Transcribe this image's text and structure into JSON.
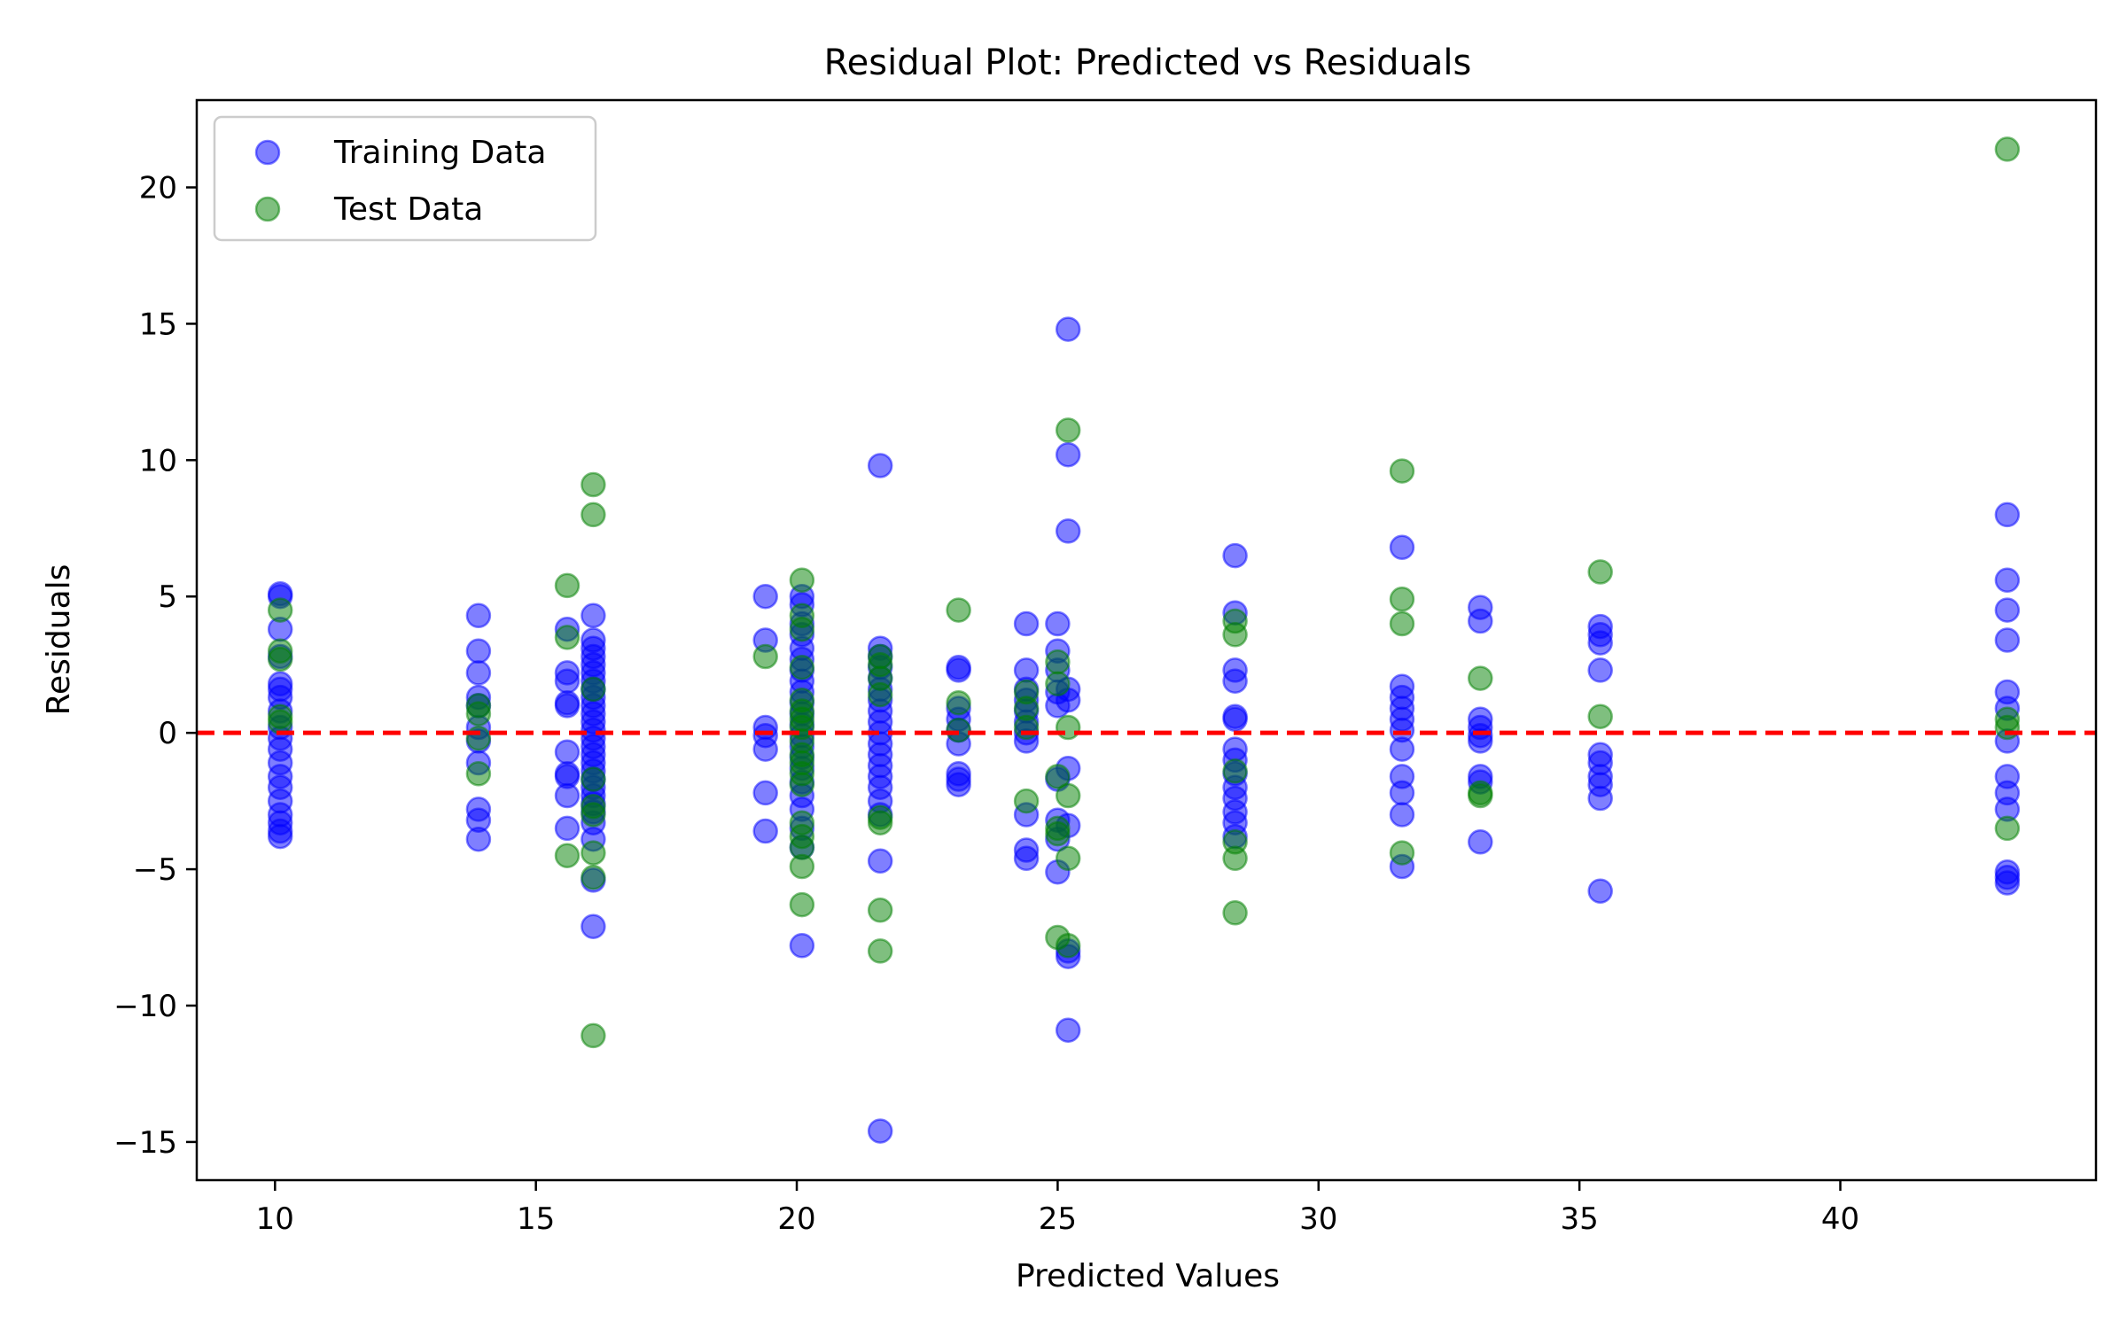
{
  "chart_data": {
    "type": "scatter",
    "title": "Residual Plot: Predicted vs Residuals",
    "xlabel": "Predicted Values",
    "ylabel": "Residuals",
    "xlim": [
      8.5,
      44.9
    ],
    "ylim": [
      -16.4,
      23.2
    ],
    "xticks": [
      10,
      15,
      20,
      25,
      30,
      35,
      40
    ],
    "yticks": [
      -15,
      -10,
      -5,
      0,
      5,
      10,
      15,
      20
    ],
    "grid": false,
    "legend_position": "top-left",
    "reference_line": {
      "y": 0,
      "style": "dashed",
      "color": "#ff0000"
    },
    "series": [
      {
        "name": "Training Data",
        "color": "#0000ff",
        "alpha": 0.5,
        "points": [
          [
            10.1,
            5.1
          ],
          [
            10.1,
            5.0
          ],
          [
            10.1,
            3.8
          ],
          [
            10.1,
            2.8
          ],
          [
            10.1,
            1.8
          ],
          [
            10.1,
            1.6
          ],
          [
            10.1,
            1.3
          ],
          [
            10.1,
            0.8
          ],
          [
            10.1,
            0.2
          ],
          [
            10.1,
            -0.2
          ],
          [
            10.1,
            -0.6
          ],
          [
            10.1,
            -1.1
          ],
          [
            10.1,
            -1.6
          ],
          [
            10.1,
            -2.0
          ],
          [
            10.1,
            -2.5
          ],
          [
            10.1,
            -3.0
          ],
          [
            10.1,
            -3.3
          ],
          [
            10.1,
            -3.6
          ],
          [
            10.1,
            -3.8
          ],
          [
            13.9,
            4.3
          ],
          [
            13.9,
            3.0
          ],
          [
            13.9,
            2.2
          ],
          [
            13.9,
            1.3
          ],
          [
            13.9,
            1.0
          ],
          [
            13.9,
            0.2
          ],
          [
            13.9,
            -0.3
          ],
          [
            13.9,
            -1.1
          ],
          [
            13.9,
            -2.8
          ],
          [
            13.9,
            -3.2
          ],
          [
            13.9,
            -3.9
          ],
          [
            15.6,
            3.8
          ],
          [
            15.6,
            2.2
          ],
          [
            15.6,
            1.9
          ],
          [
            15.6,
            1.1
          ],
          [
            15.6,
            1.0
          ],
          [
            15.6,
            -0.7
          ],
          [
            15.6,
            -1.5
          ],
          [
            15.6,
            -1.6
          ],
          [
            15.6,
            -2.3
          ],
          [
            15.6,
            -3.5
          ],
          [
            16.1,
            4.3
          ],
          [
            16.1,
            3.4
          ],
          [
            16.1,
            3.1
          ],
          [
            16.1,
            2.8
          ],
          [
            16.1,
            2.5
          ],
          [
            16.1,
            2.2
          ],
          [
            16.1,
            1.9
          ],
          [
            16.1,
            1.6
          ],
          [
            16.1,
            1.3
          ],
          [
            16.1,
            1.0
          ],
          [
            16.1,
            0.7
          ],
          [
            16.1,
            0.4
          ],
          [
            16.1,
            0.1
          ],
          [
            16.1,
            -0.2
          ],
          [
            16.1,
            -0.5
          ],
          [
            16.1,
            -0.8
          ],
          [
            16.1,
            -1.1
          ],
          [
            16.1,
            -1.4
          ],
          [
            16.1,
            -1.7
          ],
          [
            16.1,
            -2.0
          ],
          [
            16.1,
            -2.3
          ],
          [
            16.1,
            -2.6
          ],
          [
            16.1,
            -2.9
          ],
          [
            16.1,
            -3.3
          ],
          [
            16.1,
            -3.9
          ],
          [
            16.1,
            -5.4
          ],
          [
            16.1,
            -7.1
          ],
          [
            19.4,
            5.0
          ],
          [
            19.4,
            3.4
          ],
          [
            19.4,
            0.2
          ],
          [
            19.4,
            -0.1
          ],
          [
            19.4,
            -0.6
          ],
          [
            19.4,
            -2.2
          ],
          [
            19.4,
            -3.6
          ],
          [
            20.1,
            5.0
          ],
          [
            20.1,
            4.7
          ],
          [
            20.1,
            4.0
          ],
          [
            20.1,
            3.6
          ],
          [
            20.1,
            3.1
          ],
          [
            20.1,
            2.7
          ],
          [
            20.1,
            2.3
          ],
          [
            20.1,
            1.9
          ],
          [
            20.1,
            1.5
          ],
          [
            20.1,
            1.1
          ],
          [
            20.1,
            0.7
          ],
          [
            20.1,
            0.3
          ],
          [
            20.1,
            -0.1
          ],
          [
            20.1,
            -0.5
          ],
          [
            20.1,
            -0.9
          ],
          [
            20.1,
            -1.3
          ],
          [
            20.1,
            -1.8
          ],
          [
            20.1,
            -2.3
          ],
          [
            20.1,
            -2.8
          ],
          [
            20.1,
            -3.5
          ],
          [
            20.1,
            -4.2
          ],
          [
            20.1,
            -7.8
          ],
          [
            21.6,
            9.8
          ],
          [
            21.6,
            3.1
          ],
          [
            21.6,
            2.8
          ],
          [
            21.6,
            2.4
          ],
          [
            21.6,
            2.0
          ],
          [
            21.6,
            1.6
          ],
          [
            21.6,
            1.2
          ],
          [
            21.6,
            0.8
          ],
          [
            21.6,
            0.4
          ],
          [
            21.6,
            0.0
          ],
          [
            21.6,
            -0.4
          ],
          [
            21.6,
            -0.8
          ],
          [
            21.6,
            -1.2
          ],
          [
            21.6,
            -1.6
          ],
          [
            21.6,
            -2.0
          ],
          [
            21.6,
            -2.5
          ],
          [
            21.6,
            -3.0
          ],
          [
            21.6,
            -4.7
          ],
          [
            21.6,
            -14.6
          ],
          [
            23.1,
            2.4
          ],
          [
            23.1,
            2.3
          ],
          [
            23.1,
            0.9
          ],
          [
            23.1,
            0.5
          ],
          [
            23.1,
            0.1
          ],
          [
            23.1,
            -0.4
          ],
          [
            23.1,
            -1.5
          ],
          [
            23.1,
            -1.7
          ],
          [
            23.1,
            -1.9
          ],
          [
            24.4,
            4.0
          ],
          [
            24.4,
            2.3
          ],
          [
            24.4,
            1.6
          ],
          [
            24.4,
            1.2
          ],
          [
            24.4,
            0.8
          ],
          [
            24.4,
            0.4
          ],
          [
            24.4,
            0.0
          ],
          [
            24.4,
            -0.3
          ],
          [
            24.4,
            -3.0
          ],
          [
            24.4,
            -4.3
          ],
          [
            24.4,
            -4.6
          ],
          [
            25.0,
            4.0
          ],
          [
            25.0,
            3.0
          ],
          [
            25.0,
            2.3
          ],
          [
            25.0,
            1.5
          ],
          [
            25.0,
            1.0
          ],
          [
            25.0,
            -1.7
          ],
          [
            25.0,
            -3.2
          ],
          [
            25.0,
            -3.9
          ],
          [
            25.0,
            -5.1
          ],
          [
            25.2,
            14.8
          ],
          [
            25.2,
            10.2
          ],
          [
            25.2,
            7.4
          ],
          [
            25.2,
            1.6
          ],
          [
            25.2,
            1.2
          ],
          [
            25.2,
            -1.3
          ],
          [
            25.2,
            -3.4
          ],
          [
            25.2,
            -8.0
          ],
          [
            25.2,
            -8.2
          ],
          [
            25.2,
            -10.9
          ],
          [
            28.4,
            6.5
          ],
          [
            28.4,
            4.4
          ],
          [
            28.4,
            2.3
          ],
          [
            28.4,
            1.9
          ],
          [
            28.4,
            0.6
          ],
          [
            28.4,
            0.5
          ],
          [
            28.4,
            -0.6
          ],
          [
            28.4,
            -1.0
          ],
          [
            28.4,
            -1.5
          ],
          [
            28.4,
            -2.0
          ],
          [
            28.4,
            -2.4
          ],
          [
            28.4,
            -2.9
          ],
          [
            28.4,
            -3.3
          ],
          [
            28.4,
            -3.8
          ],
          [
            31.6,
            6.8
          ],
          [
            31.6,
            1.7
          ],
          [
            31.6,
            1.3
          ],
          [
            31.6,
            0.9
          ],
          [
            31.6,
            0.5
          ],
          [
            31.6,
            0.1
          ],
          [
            31.6,
            -0.6
          ],
          [
            31.6,
            -1.6
          ],
          [
            31.6,
            -2.2
          ],
          [
            31.6,
            -3.0
          ],
          [
            31.6,
            -4.9
          ],
          [
            33.1,
            4.6
          ],
          [
            33.1,
            4.1
          ],
          [
            33.1,
            0.5
          ],
          [
            33.1,
            0.2
          ],
          [
            33.1,
            -0.1
          ],
          [
            33.1,
            -0.3
          ],
          [
            33.1,
            -1.6
          ],
          [
            33.1,
            -1.8
          ],
          [
            33.1,
            -4.0
          ],
          [
            35.4,
            3.9
          ],
          [
            35.4,
            3.6
          ],
          [
            35.4,
            3.3
          ],
          [
            35.4,
            2.3
          ],
          [
            35.4,
            -0.8
          ],
          [
            35.4,
            -1.1
          ],
          [
            35.4,
            -1.6
          ],
          [
            35.4,
            -1.9
          ],
          [
            35.4,
            -2.4
          ],
          [
            35.4,
            -5.8
          ],
          [
            43.2,
            8.0
          ],
          [
            43.2,
            5.6
          ],
          [
            43.2,
            4.5
          ],
          [
            43.2,
            3.4
          ],
          [
            43.2,
            1.5
          ],
          [
            43.2,
            0.9
          ],
          [
            43.2,
            -0.3
          ],
          [
            43.2,
            -1.6
          ],
          [
            43.2,
            -2.2
          ],
          [
            43.2,
            -2.8
          ],
          [
            43.2,
            -5.1
          ],
          [
            43.2,
            -5.3
          ],
          [
            43.2,
            -5.5
          ]
        ]
      },
      {
        "name": "Test Data",
        "color": "#008000",
        "alpha": 0.5,
        "points": [
          [
            10.1,
            4.5
          ],
          [
            10.1,
            3.0
          ],
          [
            10.1,
            2.7
          ],
          [
            10.1,
            0.6
          ],
          [
            10.1,
            0.4
          ],
          [
            13.9,
            1.0
          ],
          [
            13.9,
            0.7
          ],
          [
            13.9,
            -0.2
          ],
          [
            13.9,
            -1.5
          ],
          [
            15.6,
            5.4
          ],
          [
            15.6,
            3.5
          ],
          [
            15.6,
            -4.5
          ],
          [
            16.1,
            9.1
          ],
          [
            16.1,
            8.0
          ],
          [
            16.1,
            1.6
          ],
          [
            16.1,
            -1.7
          ],
          [
            16.1,
            -2.7
          ],
          [
            16.1,
            -3.0
          ],
          [
            16.1,
            -4.4
          ],
          [
            16.1,
            -5.3
          ],
          [
            16.1,
            -11.1
          ],
          [
            19.4,
            2.8
          ],
          [
            20.1,
            5.6
          ],
          [
            20.1,
            4.3
          ],
          [
            20.1,
            3.8
          ],
          [
            20.1,
            2.4
          ],
          [
            20.1,
            1.2
          ],
          [
            20.1,
            0.8
          ],
          [
            20.1,
            0.5
          ],
          [
            20.1,
            0.2
          ],
          [
            20.1,
            -0.3
          ],
          [
            20.1,
            -0.8
          ],
          [
            20.1,
            -1.1
          ],
          [
            20.1,
            -1.5
          ],
          [
            20.1,
            -1.9
          ],
          [
            20.1,
            -3.3
          ],
          [
            20.1,
            -3.8
          ],
          [
            20.1,
            -4.2
          ],
          [
            20.1,
            -4.9
          ],
          [
            20.1,
            -6.3
          ],
          [
            21.6,
            2.8
          ],
          [
            21.6,
            2.5
          ],
          [
            21.6,
            2.0
          ],
          [
            21.6,
            1.4
          ],
          [
            21.6,
            -3.1
          ],
          [
            21.6,
            -3.3
          ],
          [
            21.6,
            -6.5
          ],
          [
            21.6,
            -8.0
          ],
          [
            23.1,
            4.5
          ],
          [
            23.1,
            1.1
          ],
          [
            23.1,
            0.1
          ],
          [
            24.4,
            1.5
          ],
          [
            24.4,
            0.9
          ],
          [
            24.4,
            0.2
          ],
          [
            24.4,
            -2.5
          ],
          [
            25.0,
            2.6
          ],
          [
            25.0,
            1.8
          ],
          [
            25.0,
            -1.6
          ],
          [
            25.0,
            -3.5
          ],
          [
            25.0,
            -3.7
          ],
          [
            25.0,
            -7.5
          ],
          [
            25.2,
            11.1
          ],
          [
            25.2,
            0.2
          ],
          [
            25.2,
            -2.3
          ],
          [
            25.2,
            -4.6
          ],
          [
            25.2,
            -7.8
          ],
          [
            28.4,
            4.1
          ],
          [
            28.4,
            3.6
          ],
          [
            28.4,
            -1.4
          ],
          [
            28.4,
            -4.0
          ],
          [
            28.4,
            -4.6
          ],
          [
            28.4,
            -6.6
          ],
          [
            31.6,
            9.6
          ],
          [
            31.6,
            4.9
          ],
          [
            31.6,
            4.0
          ],
          [
            31.6,
            -4.4
          ],
          [
            33.1,
            2.0
          ],
          [
            33.1,
            -2.2
          ],
          [
            33.1,
            -2.3
          ],
          [
            35.4,
            5.9
          ],
          [
            35.4,
            0.6
          ],
          [
            43.2,
            21.4
          ],
          [
            43.2,
            0.5
          ],
          [
            43.2,
            0.2
          ],
          [
            43.2,
            -3.5
          ]
        ]
      }
    ]
  }
}
